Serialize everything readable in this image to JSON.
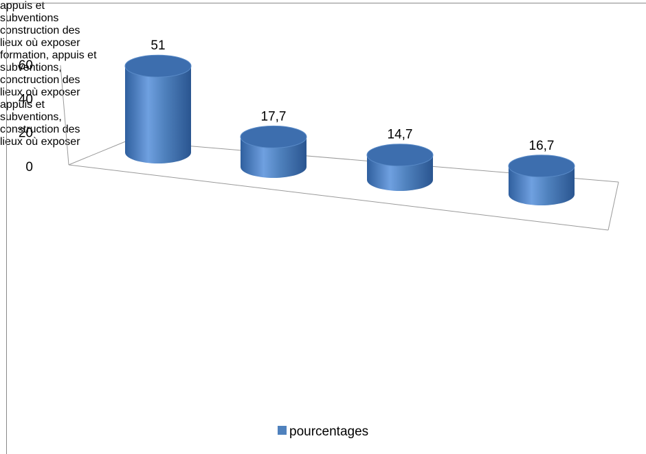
{
  "chart_data": {
    "type": "bar3d",
    "categories": [
      "appuis et subventions",
      "construction des lieux où exposer",
      "formation, appuis et subventions, conctruction des lieux où exposer",
      "appuis et subventions, construction des lieux où exposer"
    ],
    "series": [
      {
        "name": "pourcentages",
        "color": "#4f81bd",
        "values": [
          51,
          17.7,
          14.7,
          16.7
        ],
        "value_labels": [
          "51",
          "17,7",
          "14,7",
          "16,7"
        ]
      }
    ],
    "ylim": [
      0,
      60
    ],
    "yticks": [
      0,
      20,
      40,
      60
    ],
    "legend": "bottom"
  }
}
